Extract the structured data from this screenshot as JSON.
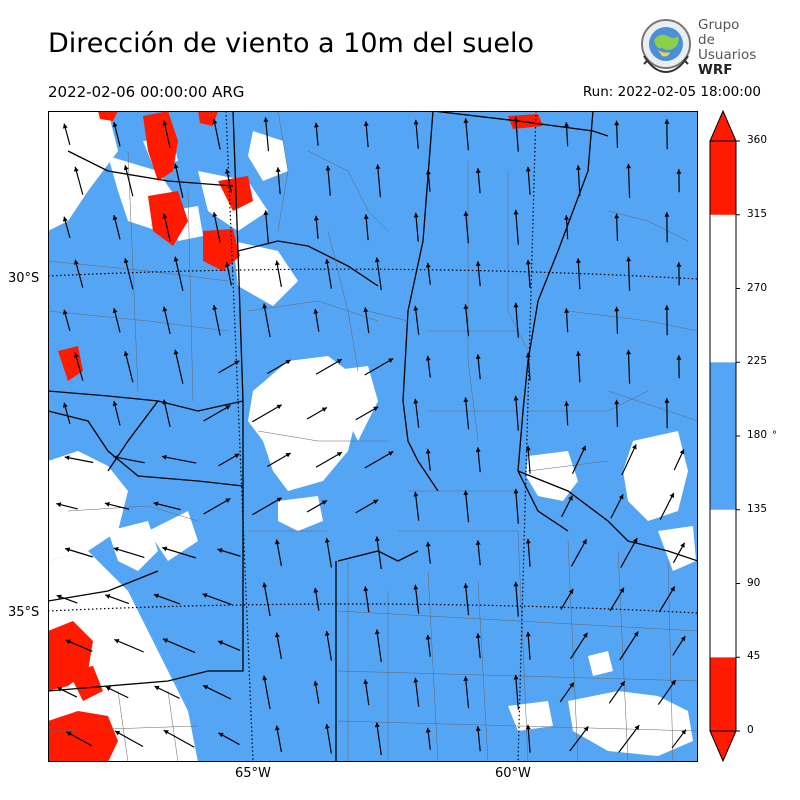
{
  "title": "Dirección de viento a 10m del suelo",
  "valid_time": "2022-02-06 00:00:00 ARG",
  "run_time": "Run: 2022-02-05 18:00:00",
  "logo": {
    "line1": "Grupo de",
    "line2": "Usuarios",
    "line3": "WRF"
  },
  "map": {
    "lat_labels": [
      "30°S",
      "35°S"
    ],
    "lon_labels": [
      "65°W",
      "60°W"
    ],
    "colors": {
      "sector_red": "#ff1a00",
      "sector_white": "#ffffff",
      "sector_blue": "#55a5f5",
      "border": "#000000"
    }
  },
  "colorbar": {
    "ticks": [
      "360",
      "315",
      "270",
      "225",
      "180",
      "135",
      "90",
      "45",
      "0"
    ],
    "unit": "°",
    "bands": [
      {
        "from": 0,
        "to": 45,
        "color": "#ff1a00"
      },
      {
        "from": 45,
        "to": 135,
        "color": "#ffffff"
      },
      {
        "from": 135,
        "to": 225,
        "color": "#55a5f5"
      },
      {
        "from": 225,
        "to": 315,
        "color": "#ffffff"
      },
      {
        "from": 315,
        "to": 360,
        "color": "#ff1a00"
      }
    ]
  }
}
